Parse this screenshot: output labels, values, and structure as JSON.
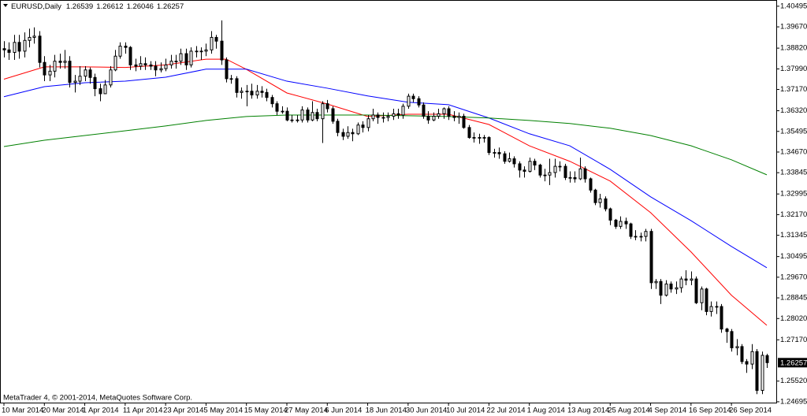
{
  "chart_data": {
    "type": "candlestick",
    "title": "EURUSD,Daily",
    "footer": "MetaTrader 4, © 2001-2014, MetaQuotes Software Corp.",
    "up_color": "#ffffff",
    "down_color": "#000000",
    "ylim": [
      1.2463,
      1.4068
    ],
    "yticks": [
      1.40495,
      {
        "value": 1.3967,
        "label": "1.39670"
      },
      {
        "value": 1.3882,
        "label": "1.38820"
      },
      {
        "value": 1.3799,
        "label": "1.37990"
      },
      {
        "value": 1.3717,
        "label": "1.37170"
      },
      {
        "value": 1.3632,
        "label": "1.36320"
      },
      1.35495,
      {
        "value": 1.3467,
        "label": "1.34670"
      },
      1.33845,
      1.32995,
      {
        "value": 1.3217,
        "label": "1.32170"
      },
      1.31345,
      1.30495,
      {
        "value": 1.2967,
        "label": "1.29670"
      },
      1.28845,
      {
        "value": 1.2802,
        "label": "1.28020"
      },
      {
        "value": 1.2717,
        "label": "1.27170"
      },
      {
        "value": 1.2552,
        "label": "1.25520"
      },
      1.24695
    ],
    "categories": [
      "10 Mar 2014",
      null,
      null,
      null,
      null,
      null,
      null,
      null,
      "20 Mar 2014",
      null,
      null,
      null,
      null,
      null,
      null,
      null,
      "1 Apr 2014",
      null,
      null,
      null,
      null,
      null,
      null,
      null,
      "11 Apr 2014",
      null,
      null,
      null,
      null,
      null,
      null,
      null,
      "23 Apr 2014",
      null,
      null,
      null,
      null,
      null,
      null,
      null,
      "5 May 2014",
      null,
      null,
      null,
      null,
      null,
      null,
      null,
      "15 May 2014",
      null,
      null,
      null,
      null,
      null,
      null,
      null,
      "27 May 2014",
      null,
      null,
      null,
      null,
      null,
      null,
      null,
      "6 Jun 2014",
      null,
      null,
      null,
      null,
      null,
      null,
      null,
      "18 Jun 2014",
      null,
      null,
      null,
      null,
      null,
      null,
      null,
      "30 Jun 2014",
      null,
      null,
      null,
      null,
      null,
      null,
      null,
      "10 Jul 2014",
      null,
      null,
      null,
      null,
      null,
      null,
      null,
      "22 Jul 2014",
      null,
      null,
      null,
      null,
      null,
      null,
      null,
      "1 Aug 2014",
      null,
      null,
      null,
      null,
      null,
      null,
      null,
      "13 Aug 2014",
      null,
      null,
      null,
      null,
      null,
      null,
      null,
      "25 Aug 2014",
      null,
      null,
      null,
      null,
      null,
      null,
      null,
      "4 Sep 2014",
      null,
      null,
      null,
      null,
      null,
      null,
      null,
      "16 Sep 2014",
      null,
      null,
      null,
      null,
      null,
      null,
      null,
      "26 Sep 2014",
      null,
      null,
      null,
      null,
      null,
      null,
      null
    ],
    "open": [
      1.388,
      1.3875,
      1.3865,
      1.3905,
      1.387,
      1.3913,
      1.3925,
      1.393,
      1.3825,
      1.3775,
      1.379,
      1.383,
      1.3825,
      1.383,
      1.3745,
      1.375,
      1.377,
      1.3795,
      1.3765,
      1.372,
      1.37,
      1.3735,
      1.3795,
      1.385,
      1.389,
      1.3885,
      1.3815,
      1.381,
      1.382,
      1.3815,
      1.381,
      1.3795,
      1.38,
      1.3815,
      1.383,
      1.383,
      1.386,
      1.3815,
      1.387,
      1.387,
      1.387,
      1.3875,
      1.3925,
      1.391,
      1.3835,
      1.376,
      1.376,
      1.3705,
      1.371,
      1.371,
      1.3695,
      1.371,
      1.3705,
      1.3685,
      1.366,
      1.363,
      1.363,
      1.3595,
      1.3595,
      1.3595,
      1.3635,
      1.3595,
      1.3625,
      1.36,
      1.366,
      1.364,
      1.359,
      1.3545,
      1.353,
      1.3545,
      1.354,
      1.3575,
      1.3565,
      1.36,
      1.3615,
      1.3605,
      1.3605,
      1.361,
      1.362,
      1.3615,
      1.365,
      1.369,
      1.368,
      1.3655,
      1.361,
      1.3595,
      1.361,
      1.362,
      1.364,
      1.361,
      1.3605,
      1.361,
      1.3565,
      1.3525,
      1.3525,
      1.3525,
      1.3525,
      1.3465,
      1.3465,
      1.346,
      1.343,
      1.344,
      1.342,
      1.3395,
      1.339,
      1.343,
      1.3415,
      1.3375,
      1.3375,
      1.3385,
      1.341,
      1.341,
      1.3365,
      1.3365,
      1.336,
      1.34,
      1.336,
      1.3315,
      1.3265,
      1.328,
      1.324,
      1.3195,
      1.317,
      1.319,
      1.318,
      1.313,
      1.313,
      1.313,
      1.315,
      1.2945,
      1.295,
      1.2895,
      1.294,
      1.292,
      1.2925,
      1.296,
      1.2955,
      1.296,
      1.2865,
      1.292,
      1.283,
      1.285,
      1.285,
      1.276,
      1.275,
      1.2685,
      1.269,
      1.263,
      1.262,
      1.267,
      1.2515,
      1.26539
    ],
    "high": [
      1.391,
      1.3905,
      1.3935,
      1.3935,
      1.3945,
      1.396,
      1.3965,
      1.395,
      1.385,
      1.3815,
      1.3855,
      1.386,
      1.3875,
      1.385,
      1.3775,
      1.381,
      1.381,
      1.3805,
      1.378,
      1.374,
      1.3755,
      1.381,
      1.3875,
      1.3905,
      1.3905,
      1.389,
      1.384,
      1.385,
      1.3845,
      1.383,
      1.383,
      1.3825,
      1.384,
      1.3855,
      1.3855,
      1.388,
      1.388,
      1.3885,
      1.389,
      1.3885,
      1.39,
      1.395,
      1.3935,
      1.3993,
      1.3845,
      1.3775,
      1.377,
      1.3725,
      1.3735,
      1.374,
      1.3735,
      1.373,
      1.372,
      1.3695,
      1.367,
      1.365,
      1.3645,
      1.3615,
      1.3615,
      1.365,
      1.3645,
      1.367,
      1.364,
      1.367,
      1.3675,
      1.365,
      1.36,
      1.356,
      1.357,
      1.356,
      1.3585,
      1.359,
      1.3615,
      1.364,
      1.3625,
      1.3625,
      1.3625,
      1.364,
      1.364,
      1.366,
      1.37,
      1.37,
      1.369,
      1.3665,
      1.363,
      1.3625,
      1.364,
      1.3645,
      1.365,
      1.363,
      1.3625,
      1.362,
      1.3575,
      1.3545,
      1.354,
      1.3535,
      1.353,
      1.348,
      1.3485,
      1.347,
      1.3465,
      1.345,
      1.343,
      1.341,
      1.3445,
      1.344,
      1.342,
      1.34,
      1.344,
      1.344,
      1.343,
      1.342,
      1.339,
      1.339,
      1.3445,
      1.341,
      1.3365,
      1.332,
      1.33,
      1.329,
      1.3245,
      1.32,
      1.321,
      1.3205,
      1.3185,
      1.3155,
      1.3145,
      1.316,
      1.316,
      1.296,
      1.296,
      1.2955,
      1.295,
      1.295,
      1.297,
      1.2995,
      1.299,
      1.297,
      1.293,
      1.2925,
      1.287,
      1.287,
      1.286,
      1.2765,
      1.276,
      1.272,
      1.27,
      1.264,
      1.27,
      1.268,
      1.267,
      1.26612
    ],
    "low": [
      1.3845,
      1.3835,
      1.3835,
      1.384,
      1.3845,
      1.3885,
      1.39,
      1.3805,
      1.375,
      1.375,
      1.3765,
      1.38,
      1.38,
      1.3725,
      1.3705,
      1.3735,
      1.375,
      1.374,
      1.369,
      1.367,
      1.37,
      1.3725,
      1.379,
      1.384,
      1.386,
      1.3795,
      1.379,
      1.3795,
      1.3795,
      1.3795,
      1.377,
      1.3785,
      1.379,
      1.38,
      1.38,
      1.3815,
      1.3795,
      1.3805,
      1.3845,
      1.3835,
      1.385,
      1.386,
      1.388,
      1.3815,
      1.3745,
      1.374,
      1.3685,
      1.368,
      1.365,
      1.368,
      1.368,
      1.3685,
      1.367,
      1.3645,
      1.3615,
      1.362,
      1.359,
      1.3585,
      1.3585,
      1.3585,
      1.3585,
      1.359,
      1.359,
      1.3503,
      1.3625,
      1.358,
      1.353,
      1.3515,
      1.352,
      1.351,
      1.3535,
      1.3545,
      1.355,
      1.359,
      1.358,
      1.3585,
      1.359,
      1.3595,
      1.36,
      1.36,
      1.364,
      1.3665,
      1.3645,
      1.36,
      1.358,
      1.359,
      1.36,
      1.36,
      1.3595,
      1.359,
      1.358,
      1.356,
      1.352,
      1.3505,
      1.35,
      1.3505,
      1.3455,
      1.3445,
      1.344,
      1.342,
      1.3425,
      1.3405,
      1.3365,
      1.3365,
      1.3385,
      1.3395,
      1.3365,
      1.335,
      1.3335,
      1.3365,
      1.339,
      1.3355,
      1.3345,
      1.3345,
      1.3355,
      1.3345,
      1.3305,
      1.3255,
      1.3245,
      1.323,
      1.3175,
      1.316,
      1.316,
      1.316,
      1.312,
      1.3115,
      1.311,
      1.311,
      1.292,
      1.292,
      1.286,
      1.289,
      1.2905,
      1.29,
      1.2905,
      1.2935,
      1.2935,
      1.286,
      1.2835,
      1.2815,
      1.281,
      1.282,
      1.2745,
      1.2705,
      1.267,
      1.2655,
      1.262,
      1.2585,
      1.26,
      1.25,
      1.25,
      1.26046
    ],
    "close": [
      1.3875,
      1.3865,
      1.3905,
      1.387,
      1.3913,
      1.3925,
      1.393,
      1.3825,
      1.3775,
      1.379,
      1.383,
      1.3825,
      1.383,
      1.3745,
      1.375,
      1.377,
      1.3795,
      1.3765,
      1.372,
      1.37,
      1.3735,
      1.3795,
      1.385,
      1.389,
      1.3885,
      1.3815,
      1.381,
      1.382,
      1.3815,
      1.381,
      1.3795,
      1.38,
      1.3815,
      1.383,
      1.383,
      1.386,
      1.3815,
      1.387,
      1.387,
      1.387,
      1.3875,
      1.3925,
      1.391,
      1.3835,
      1.376,
      1.376,
      1.3705,
      1.371,
      1.371,
      1.3695,
      1.371,
      1.3705,
      1.3685,
      1.366,
      1.363,
      1.363,
      1.3595,
      1.3595,
      1.3595,
      1.3635,
      1.3595,
      1.3625,
      1.36,
      1.366,
      1.364,
      1.359,
      1.3545,
      1.353,
      1.3545,
      1.354,
      1.3575,
      1.3565,
      1.36,
      1.3615,
      1.3605,
      1.3605,
      1.361,
      1.362,
      1.3615,
      1.365,
      1.369,
      1.368,
      1.3655,
      1.361,
      1.3595,
      1.361,
      1.362,
      1.364,
      1.361,
      1.3605,
      1.361,
      1.3565,
      1.3525,
      1.3525,
      1.3525,
      1.3525,
      1.3465,
      1.3465,
      1.346,
      1.343,
      1.344,
      1.342,
      1.3395,
      1.339,
      1.343,
      1.3415,
      1.3375,
      1.3375,
      1.3385,
      1.341,
      1.341,
      1.3365,
      1.3365,
      1.336,
      1.34,
      1.336,
      1.3315,
      1.3265,
      1.328,
      1.324,
      1.3195,
      1.317,
      1.319,
      1.318,
      1.313,
      1.313,
      1.313,
      1.315,
      1.2945,
      1.295,
      1.2895,
      1.294,
      1.292,
      1.2925,
      1.296,
      1.2955,
      1.296,
      1.2865,
      1.292,
      1.283,
      1.285,
      1.285,
      1.276,
      1.275,
      1.2685,
      1.269,
      1.263,
      1.262,
      1.267,
      1.2515,
      1.2655,
      1.26257
    ],
    "lines": [
      {
        "color": "#ff0000",
        "x": [
          0,
          8,
          16,
          24,
          32,
          40,
          44,
          48,
          56,
          64,
          72,
          80,
          88,
          96,
          104,
          112,
          120,
          128,
          136,
          144,
          151
        ],
        "values": [
          1.3758,
          1.3807,
          1.3807,
          1.3805,
          1.3815,
          1.3838,
          1.3838,
          1.3797,
          1.3703,
          1.3659,
          1.3609,
          1.3618,
          1.3618,
          1.3577,
          1.3492,
          1.343,
          1.3351,
          1.3225,
          1.3068,
          1.2895,
          1.2775
        ]
      },
      {
        "color": "#0000ff",
        "x": [
          0,
          8,
          16,
          24,
          32,
          40,
          48,
          56,
          64,
          72,
          80,
          88,
          96,
          104,
          112,
          120,
          128,
          136,
          144,
          151
        ],
        "values": [
          1.3688,
          1.3728,
          1.3744,
          1.375,
          1.3766,
          1.3798,
          1.3798,
          1.375,
          1.3722,
          1.3691,
          1.3666,
          1.3656,
          1.3603,
          1.354,
          1.3492,
          1.3398,
          1.3288,
          1.3193,
          1.309,
          1.3005
        ]
      },
      {
        "color": "#008000",
        "x": [
          0,
          8,
          16,
          24,
          32,
          40,
          48,
          56,
          64,
          72,
          80,
          88,
          96,
          104,
          112,
          120,
          128,
          136,
          144,
          151
        ],
        "values": [
          1.3489,
          1.3514,
          1.3533,
          1.3552,
          1.3571,
          1.3593,
          1.3609,
          1.3615,
          1.3615,
          1.3615,
          1.3612,
          1.3609,
          1.3603,
          1.3593,
          1.3581,
          1.3562,
          1.3533,
          1.3492,
          1.3436,
          1.3376
        ]
      }
    ]
  }
}
